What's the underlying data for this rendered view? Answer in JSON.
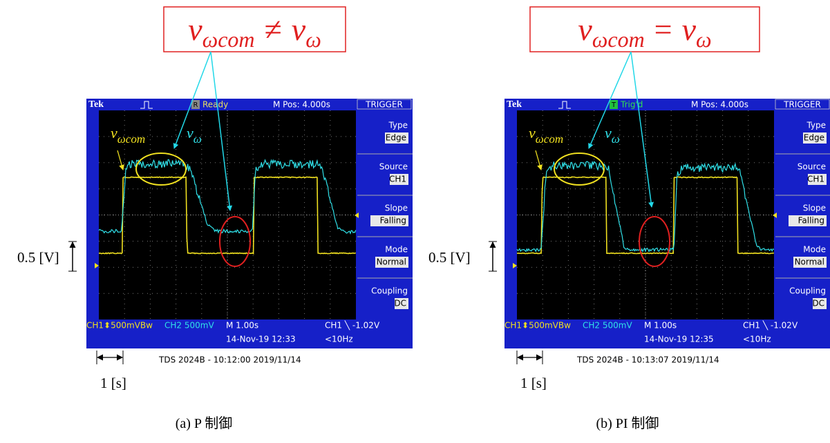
{
  "panels": [
    {
      "callout": {
        "lhs": "v",
        "lhs_sub": "ωcom",
        "relation": "≠",
        "rhs": "v",
        "rhs_sub": "ω"
      },
      "trace_labels": {
        "ch1": "v",
        "ch1_sub": "ωcom",
        "ch2": "v",
        "ch2_sub": "ω"
      },
      "scope": {
        "brand": "Tek",
        "status_icon": "R",
        "status": "Ready",
        "m_pos": "M Pos: 4.000s",
        "menu_title": "TRIGGER",
        "menu": [
          {
            "label": "Type",
            "value": "Edge"
          },
          {
            "label": "Source",
            "value": "CH1"
          },
          {
            "label": "Slope",
            "value": "Falling"
          },
          {
            "label": "Mode",
            "value": "Normal"
          },
          {
            "label": "Coupling",
            "value": "DC"
          }
        ],
        "ch1_scale": "CH1⬍500mVBw",
        "ch2_scale": "CH2  500mV",
        "timebase": "M 1.00s",
        "trigger_level": "CH1 ╲ -1.02V",
        "datetime": "14-Nov-19 12:33",
        "freq": "<10Hz"
      },
      "footer": "TDS 2024B - 10:12:00   2019/11/14",
      "voltage_scale": "0.5 [V]",
      "time_scale": "1 [s]",
      "caption": "(a) P 制御"
    },
    {
      "callout": {
        "lhs": "v",
        "lhs_sub": "ωcom",
        "relation": "=",
        "rhs": "v",
        "rhs_sub": "ω"
      },
      "trace_labels": {
        "ch1": "v",
        "ch1_sub": "ωcom",
        "ch2": "v",
        "ch2_sub": "ω"
      },
      "scope": {
        "brand": "Tek",
        "status_icon": "T",
        "status": "Trig'd",
        "m_pos": "M Pos: 4.000s",
        "menu_title": "TRIGGER",
        "menu": [
          {
            "label": "Type",
            "value": "Edge"
          },
          {
            "label": "Source",
            "value": "CH1"
          },
          {
            "label": "Slope",
            "value": "Falling"
          },
          {
            "label": "Mode",
            "value": "Normal"
          },
          {
            "label": "Coupling",
            "value": "DC"
          }
        ],
        "ch1_scale": "CH1⬍500mVBw",
        "ch2_scale": "CH2  500mV",
        "timebase": "M 1.00s",
        "trigger_level": "CH1 ╲ -1.02V",
        "datetime": "14-Nov-19 12:35",
        "freq": "<10Hz"
      },
      "footer": "TDS 2024B - 10:13:07   2019/11/14",
      "voltage_scale": "0.5 [V]",
      "time_scale": "1 [s]",
      "caption": "(b) PI 制御"
    }
  ]
}
